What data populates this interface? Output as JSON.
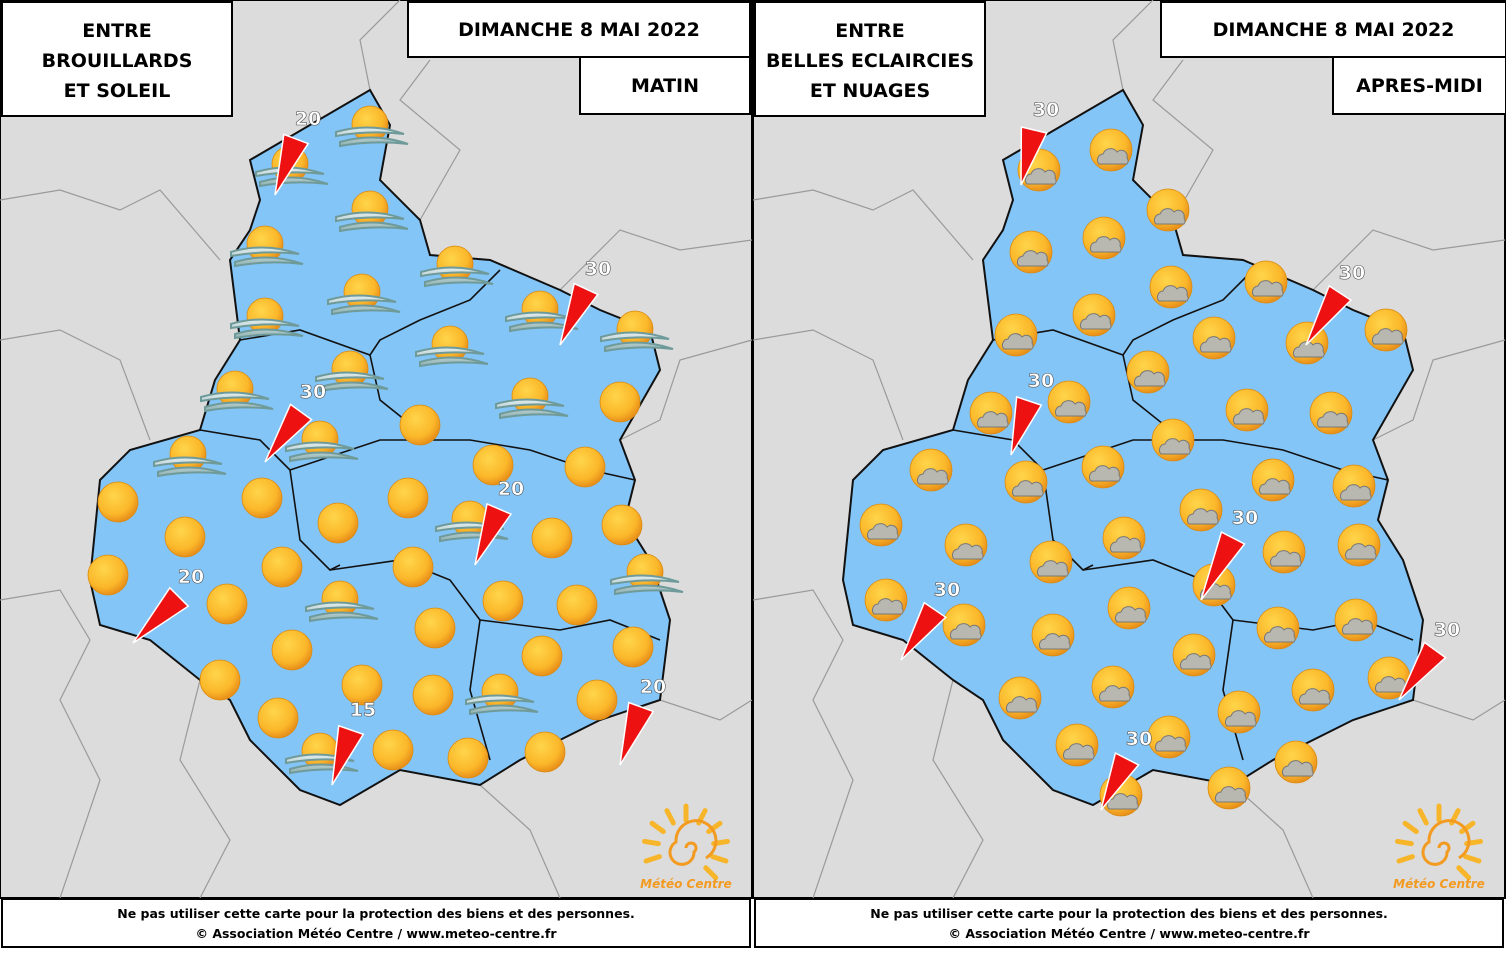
{
  "panels": [
    {
      "summary": [
        "ENTRE",
        "BROUILLARDS",
        "ET SOLEIL"
      ],
      "date": "DIMANCHE 8 MAI 2022",
      "period": "MATIN",
      "wind": [
        20,
        30,
        30,
        20,
        20,
        15,
        20
      ],
      "logo": "Météo Centre",
      "footer": [
        "Ne pas utiliser cette carte pour la protection des biens et des personnes.",
        "© Association Météo Centre / www.meteo-centre.fr"
      ]
    },
    {
      "summary": [
        "ENTRE",
        "BELLES ECLAIRCIES",
        "ET NUAGES"
      ],
      "date": "DIMANCHE 8 MAI 2022",
      "period": "APRES-MIDI",
      "wind": [
        30,
        30,
        30,
        30,
        30,
        30,
        30
      ],
      "logo": "Météo Centre",
      "footer": [
        "Ne pas utiliser cette carte pour la protection des biens et des personnes.",
        "© Association Météo Centre / www.meteo-centre.fr"
      ]
    }
  ]
}
